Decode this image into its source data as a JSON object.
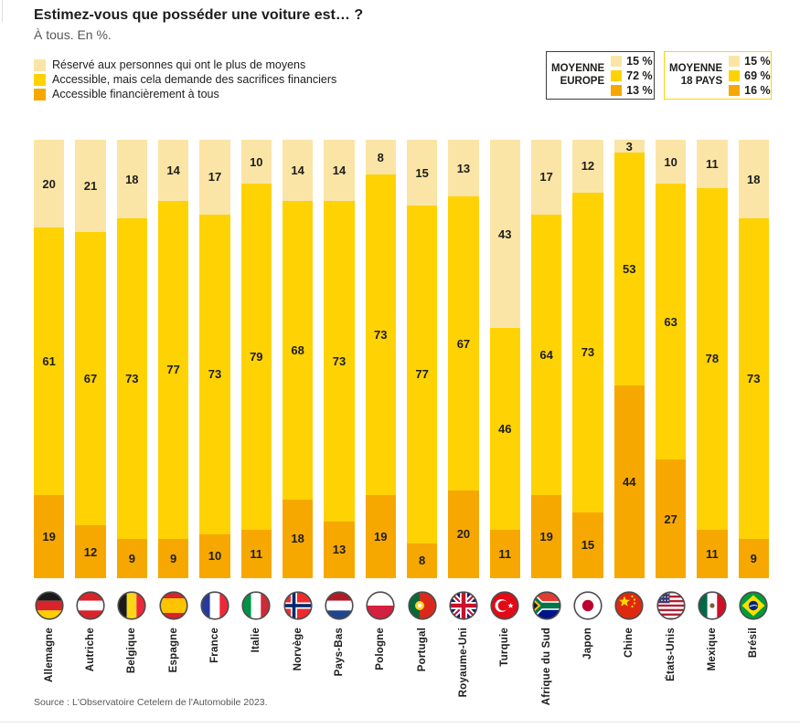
{
  "header": {
    "title": "Estimez-vous que posséder une voiture est… ?",
    "subtitle": "À tous. En %."
  },
  "colors": {
    "reserved": "#FBE5A6",
    "sacrifices": "#FFD203",
    "accessible": "#F6A800",
    "text_dark": "#1D1D1B",
    "text_gray": "#575756"
  },
  "averages": [
    {
      "title_lines": [
        "MOYENNE",
        "EUROPE"
      ],
      "values": [
        "15 %",
        "72 %",
        "13 %"
      ],
      "border_color": "#3C3C3B"
    },
    {
      "title_lines": [
        "MOYENNE",
        "18 PAYS"
      ],
      "values": [
        "15 %",
        "69 %",
        "16 %"
      ],
      "border_color": "#FFD203"
    }
  ],
  "chart_data": {
    "type": "bar",
    "stacked": true,
    "orientation": "vertical",
    "unit": "%",
    "ylim": [
      0,
      100
    ],
    "title": "Estimez-vous que posséder une voiture est… ?",
    "subtitle": "À tous. En %.",
    "categories": [
      "Allemagne",
      "Autriche",
      "Belgique",
      "Espagne",
      "France",
      "Italie",
      "Norvège",
      "Pays-Bas",
      "Pologne",
      "Portugal",
      "Royaume-Uni",
      "Turquie",
      "Afrique du Sud",
      "Japon",
      "Chine",
      "États-Unis",
      "Mexique",
      "Brésil"
    ],
    "flags": [
      "germany",
      "austria",
      "belgium",
      "spain",
      "france",
      "italy",
      "norway",
      "netherlands",
      "poland",
      "portugal",
      "uk",
      "turkey",
      "south-africa",
      "japan",
      "china",
      "usa",
      "mexico",
      "brazil"
    ],
    "series": [
      {
        "name": "Réservé aux personnes qui ont le plus de moyens",
        "color": "#FBE5A6",
        "values": [
          20,
          21,
          18,
          14,
          17,
          10,
          14,
          14,
          8,
          15,
          13,
          43,
          17,
          12,
          3,
          10,
          11,
          18
        ]
      },
      {
        "name": "Accessible, mais cela demande des sacrifices financiers",
        "color": "#FFD203",
        "values": [
          61,
          67,
          73,
          77,
          73,
          79,
          68,
          73,
          73,
          77,
          67,
          46,
          64,
          73,
          53,
          63,
          78,
          73
        ]
      },
      {
        "name": "Accessible financièrement à tous",
        "color": "#F6A800",
        "values": [
          19,
          12,
          9,
          9,
          10,
          11,
          18,
          13,
          19,
          8,
          20,
          11,
          19,
          15,
          44,
          27,
          11,
          9
        ]
      }
    ]
  },
  "source": "Source : L'Observatoire Cetelem de l'Automobile 2023."
}
